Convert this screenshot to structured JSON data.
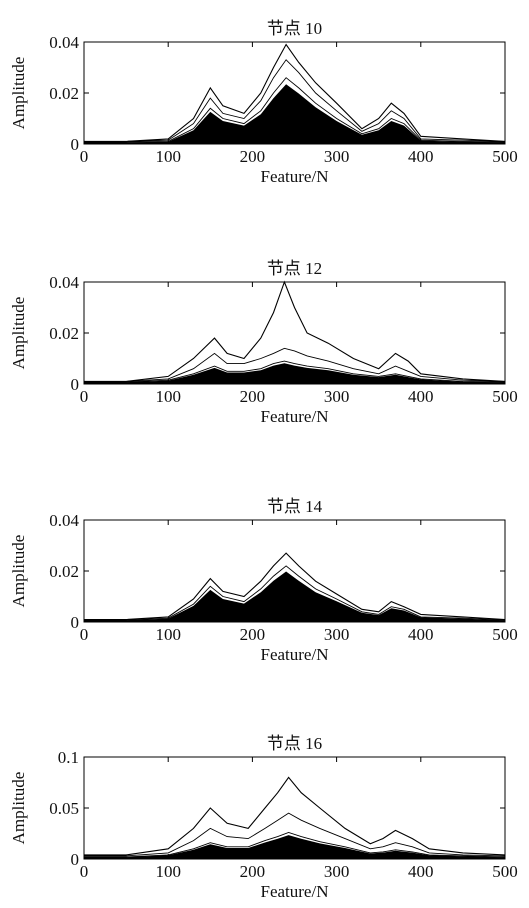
{
  "chart_data": [
    {
      "type": "line",
      "title": "节点 10",
      "xlabel": "Feature/N",
      "ylabel": "Amplitude",
      "xlim": [
        0,
        500
      ],
      "ylim": [
        0,
        0.04
      ],
      "xticks": [
        "0",
        "100",
        "200",
        "300",
        "400",
        "500"
      ],
      "yticks": [
        "0",
        "0.02",
        "0.04"
      ],
      "series": [
        {
          "x": [
            0,
            50,
            100,
            130,
            150,
            165,
            190,
            210,
            225,
            240,
            255,
            275,
            300,
            330,
            350,
            365,
            380,
            400,
            450,
            500
          ],
          "values": [
            0.001,
            0.001,
            0.002,
            0.01,
            0.022,
            0.015,
            0.012,
            0.02,
            0.03,
            0.039,
            0.032,
            0.024,
            0.016,
            0.006,
            0.01,
            0.016,
            0.012,
            0.003,
            0.002,
            0.001
          ]
        },
        {
          "x": [
            0,
            50,
            100,
            130,
            150,
            165,
            190,
            210,
            225,
            240,
            255,
            275,
            300,
            330,
            350,
            365,
            380,
            400,
            450,
            500
          ],
          "values": [
            0.001,
            0.001,
            0.0015,
            0.008,
            0.018,
            0.012,
            0.01,
            0.017,
            0.026,
            0.033,
            0.028,
            0.02,
            0.013,
            0.005,
            0.008,
            0.013,
            0.01,
            0.002,
            0.0015,
            0.001
          ]
        },
        {
          "x": [
            0,
            50,
            100,
            130,
            150,
            165,
            190,
            210,
            225,
            240,
            255,
            275,
            300,
            330,
            350,
            365,
            380,
            400,
            450,
            500
          ],
          "values": [
            0.0008,
            0.0008,
            0.001,
            0.006,
            0.014,
            0.01,
            0.008,
            0.013,
            0.02,
            0.026,
            0.022,
            0.016,
            0.01,
            0.004,
            0.006,
            0.01,
            0.008,
            0.0015,
            0.001,
            0.0008
          ]
        }
      ]
    },
    {
      "type": "line",
      "title": "节点 12",
      "xlabel": "Feature/N",
      "ylabel": "Amplitude",
      "xlim": [
        0,
        500
      ],
      "ylim": [
        0,
        0.04
      ],
      "xticks": [
        "0",
        "100",
        "200",
        "300",
        "400",
        "500"
      ],
      "yticks": [
        "0",
        "0.02",
        "0.04"
      ],
      "series": [
        {
          "x": [
            0,
            50,
            100,
            130,
            155,
            170,
            190,
            210,
            225,
            238,
            250,
            265,
            290,
            320,
            350,
            370,
            385,
            400,
            450,
            500
          ],
          "values": [
            0.001,
            0.001,
            0.003,
            0.01,
            0.018,
            0.012,
            0.01,
            0.018,
            0.028,
            0.04,
            0.03,
            0.02,
            0.016,
            0.01,
            0.006,
            0.012,
            0.009,
            0.004,
            0.002,
            0.001
          ]
        },
        {
          "x": [
            0,
            50,
            100,
            130,
            155,
            170,
            190,
            210,
            225,
            238,
            250,
            265,
            290,
            320,
            350,
            370,
            385,
            400,
            450,
            500
          ],
          "values": [
            0.001,
            0.001,
            0.002,
            0.006,
            0.012,
            0.008,
            0.008,
            0.01,
            0.012,
            0.014,
            0.013,
            0.011,
            0.009,
            0.006,
            0.004,
            0.007,
            0.005,
            0.003,
            0.0015,
            0.001
          ]
        },
        {
          "x": [
            0,
            50,
            100,
            130,
            155,
            170,
            190,
            210,
            225,
            238,
            250,
            265,
            290,
            320,
            350,
            370,
            385,
            400,
            450,
            500
          ],
          "values": [
            0.0008,
            0.0008,
            0.0015,
            0.004,
            0.007,
            0.005,
            0.005,
            0.006,
            0.008,
            0.009,
            0.008,
            0.007,
            0.006,
            0.004,
            0.003,
            0.004,
            0.003,
            0.002,
            0.001,
            0.0008
          ]
        }
      ]
    },
    {
      "type": "line",
      "title": "节点 14",
      "xlabel": "Feature/N",
      "ylabel": "Amplitude",
      "xlim": [
        0,
        500
      ],
      "ylim": [
        0,
        0.04
      ],
      "xticks": [
        "0",
        "100",
        "200",
        "300",
        "400",
        "500"
      ],
      "yticks": [
        "0",
        "0.02",
        "0.04"
      ],
      "series": [
        {
          "x": [
            0,
            50,
            100,
            130,
            150,
            165,
            190,
            210,
            225,
            240,
            255,
            275,
            300,
            330,
            350,
            365,
            380,
            400,
            450,
            500
          ],
          "values": [
            0.001,
            0.001,
            0.002,
            0.009,
            0.017,
            0.012,
            0.01,
            0.016,
            0.022,
            0.027,
            0.022,
            0.016,
            0.011,
            0.005,
            0.004,
            0.008,
            0.006,
            0.003,
            0.002,
            0.001
          ]
        },
        {
          "x": [
            0,
            50,
            100,
            130,
            150,
            165,
            190,
            210,
            225,
            240,
            255,
            275,
            300,
            330,
            350,
            365,
            380,
            400,
            450,
            500
          ],
          "values": [
            0.0008,
            0.0008,
            0.0015,
            0.007,
            0.014,
            0.01,
            0.008,
            0.013,
            0.018,
            0.022,
            0.018,
            0.013,
            0.009,
            0.004,
            0.003,
            0.006,
            0.005,
            0.002,
            0.0015,
            0.0008
          ]
        }
      ]
    },
    {
      "type": "line",
      "title": "节点 16",
      "xlabel": "Feature/N",
      "ylabel": "Amplitude",
      "xlim": [
        0,
        500
      ],
      "ylim": [
        0,
        0.1
      ],
      "xticks": [
        "0",
        "100",
        "200",
        "300",
        "400",
        "500"
      ],
      "yticks": [
        "0",
        "0.05",
        "0.1"
      ],
      "series": [
        {
          "x": [
            0,
            50,
            100,
            130,
            150,
            170,
            195,
            215,
            230,
            243,
            258,
            280,
            310,
            340,
            355,
            370,
            390,
            410,
            450,
            500
          ],
          "values": [
            0.004,
            0.004,
            0.01,
            0.03,
            0.05,
            0.035,
            0.03,
            0.05,
            0.065,
            0.08,
            0.065,
            0.05,
            0.03,
            0.015,
            0.02,
            0.028,
            0.02,
            0.01,
            0.006,
            0.004
          ]
        },
        {
          "x": [
            0,
            50,
            100,
            130,
            150,
            170,
            195,
            215,
            230,
            243,
            258,
            280,
            310,
            340,
            355,
            370,
            390,
            410,
            450,
            500
          ],
          "values": [
            0.003,
            0.003,
            0.006,
            0.018,
            0.03,
            0.022,
            0.02,
            0.03,
            0.038,
            0.045,
            0.038,
            0.03,
            0.02,
            0.01,
            0.012,
            0.016,
            0.012,
            0.006,
            0.004,
            0.003
          ]
        },
        {
          "x": [
            0,
            50,
            100,
            130,
            150,
            170,
            195,
            215,
            230,
            243,
            258,
            280,
            310,
            340,
            355,
            370,
            390,
            410,
            450,
            500
          ],
          "values": [
            0.002,
            0.002,
            0.004,
            0.01,
            0.016,
            0.012,
            0.012,
            0.018,
            0.022,
            0.026,
            0.022,
            0.017,
            0.012,
            0.006,
            0.007,
            0.009,
            0.007,
            0.004,
            0.003,
            0.002
          ]
        }
      ]
    }
  ]
}
